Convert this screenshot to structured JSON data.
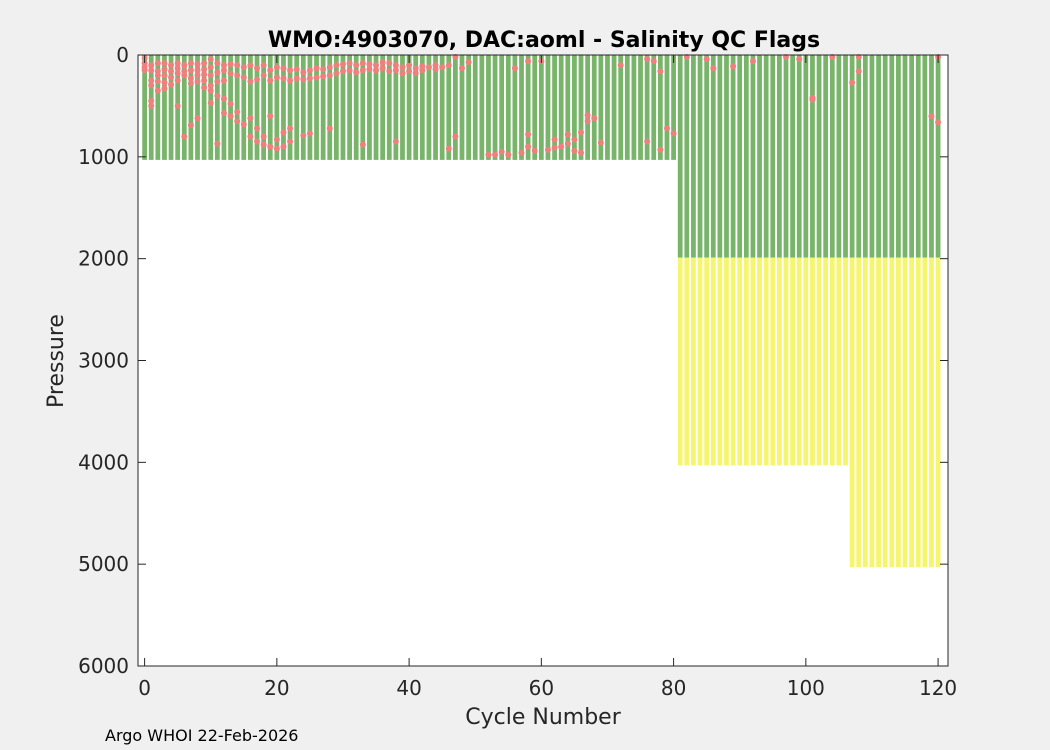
{
  "chart_data": {
    "type": "scatter",
    "title": "WMO:4903070, DAC:aoml -  Salinity QC Flags",
    "xlabel": "Cycle Number",
    "ylabel": "Pressure",
    "xlim": [
      -1,
      121.5
    ],
    "ylim": [
      0,
      6000
    ],
    "y_reversed": true,
    "grid": false,
    "xticks": [
      0,
      20,
      40,
      60,
      80,
      100,
      120
    ],
    "yticks": [
      0,
      1000,
      2000,
      3000,
      4000,
      5000,
      6000
    ],
    "xtick_labels": [
      "0",
      "20",
      "40",
      "60",
      "80",
      "100",
      "120"
    ],
    "ytick_labels": [
      "0",
      "1000",
      "2000",
      "3000",
      "4000",
      "5000",
      "6000"
    ],
    "colors": {
      "good": "#78b469",
      "bad": "#f08080",
      "probably_good": "#f5f56e"
    },
    "series": [
      {
        "flag": "good",
        "color": "#78b469",
        "segments": [
          {
            "cycles": [
              0,
              80
            ],
            "p_top": 0,
            "p_bottom": 1030
          },
          {
            "cycles": [
              81,
              120
            ],
            "p_top": 0,
            "p_bottom": 1990
          }
        ]
      },
      {
        "flag": "probably_good",
        "color": "#f5f56e",
        "segments": [
          {
            "cycles": [
              81,
              106
            ],
            "p_top": 1990,
            "p_bottom": 4030
          },
          {
            "cycles": [
              107,
              120
            ],
            "p_top": 1990,
            "p_bottom": 5030
          }
        ]
      },
      {
        "flag": "bad",
        "color": "#f08080",
        "points": [
          [
            0,
            30
          ],
          [
            0,
            80
          ],
          [
            0,
            120
          ],
          [
            0,
            150
          ],
          [
            1,
            100
          ],
          [
            1,
            150
          ],
          [
            1,
            250
          ],
          [
            1,
            300
          ],
          [
            1,
            450
          ],
          [
            1,
            500
          ],
          [
            2,
            80
          ],
          [
            2,
            160
          ],
          [
            2,
            200
          ],
          [
            2,
            260
          ],
          [
            2,
            350
          ],
          [
            3,
            80
          ],
          [
            3,
            140
          ],
          [
            3,
            200
          ],
          [
            3,
            270
          ],
          [
            3,
            330
          ],
          [
            4,
            100
          ],
          [
            4,
            160
          ],
          [
            4,
            220
          ],
          [
            4,
            290
          ],
          [
            5,
            80
          ],
          [
            5,
            130
          ],
          [
            5,
            180
          ],
          [
            5,
            250
          ],
          [
            5,
            500
          ],
          [
            6,
            100
          ],
          [
            6,
            160
          ],
          [
            6,
            200
          ],
          [
            6,
            800
          ],
          [
            7,
            80
          ],
          [
            7,
            150
          ],
          [
            7,
            230
          ],
          [
            7,
            280
          ],
          [
            7,
            690
          ],
          [
            8,
            90
          ],
          [
            8,
            150
          ],
          [
            8,
            200
          ],
          [
            8,
            260
          ],
          [
            8,
            620
          ],
          [
            9,
            80
          ],
          [
            9,
            140
          ],
          [
            9,
            190
          ],
          [
            9,
            250
          ],
          [
            9,
            320
          ],
          [
            10,
            40
          ],
          [
            10,
            120
          ],
          [
            10,
            200
          ],
          [
            10,
            300
          ],
          [
            10,
            350
          ],
          [
            10,
            470
          ],
          [
            11,
            80
          ],
          [
            11,
            170
          ],
          [
            11,
            260
          ],
          [
            11,
            400
          ],
          [
            11,
            870
          ],
          [
            12,
            100
          ],
          [
            12,
            150
          ],
          [
            12,
            250
          ],
          [
            12,
            430
          ],
          [
            12,
            570
          ],
          [
            13,
            90
          ],
          [
            13,
            180
          ],
          [
            13,
            480
          ],
          [
            13,
            600
          ],
          [
            14,
            100
          ],
          [
            14,
            200
          ],
          [
            14,
            560
          ],
          [
            14,
            650
          ],
          [
            15,
            120
          ],
          [
            15,
            220
          ],
          [
            15,
            680
          ],
          [
            16,
            100
          ],
          [
            16,
            260
          ],
          [
            16,
            620
          ],
          [
            16,
            800
          ],
          [
            17,
            130
          ],
          [
            17,
            240
          ],
          [
            17,
            720
          ],
          [
            17,
            850
          ],
          [
            18,
            100
          ],
          [
            18,
            200
          ],
          [
            18,
            800
          ],
          [
            18,
            880
          ],
          [
            19,
            150
          ],
          [
            19,
            250
          ],
          [
            19,
            600
          ],
          [
            19,
            900
          ],
          [
            20,
            120
          ],
          [
            20,
            220
          ],
          [
            20,
            830
          ],
          [
            20,
            920
          ],
          [
            21,
            130
          ],
          [
            21,
            230
          ],
          [
            21,
            760
          ],
          [
            21,
            900
          ],
          [
            22,
            150
          ],
          [
            22,
            250
          ],
          [
            22,
            720
          ],
          [
            22,
            850
          ],
          [
            23,
            140
          ],
          [
            23,
            230
          ],
          [
            24,
            170
          ],
          [
            24,
            240
          ],
          [
            24,
            790
          ],
          [
            25,
            150
          ],
          [
            25,
            230
          ],
          [
            25,
            770
          ],
          [
            26,
            130
          ],
          [
            26,
            220
          ],
          [
            27,
            140
          ],
          [
            27,
            210
          ],
          [
            28,
            120
          ],
          [
            28,
            200
          ],
          [
            28,
            720
          ],
          [
            29,
            100
          ],
          [
            29,
            180
          ],
          [
            30,
            90
          ],
          [
            30,
            160
          ],
          [
            31,
            80
          ],
          [
            31,
            150
          ],
          [
            32,
            100
          ],
          [
            32,
            170
          ],
          [
            33,
            80
          ],
          [
            33,
            150
          ],
          [
            33,
            880
          ],
          [
            34,
            90
          ],
          [
            34,
            140
          ],
          [
            35,
            100
          ],
          [
            35,
            150
          ],
          [
            36,
            70
          ],
          [
            36,
            130
          ],
          [
            37,
            80
          ],
          [
            37,
            160
          ],
          [
            38,
            100
          ],
          [
            38,
            150
          ],
          [
            38,
            850
          ],
          [
            39,
            120
          ],
          [
            39,
            180
          ],
          [
            40,
            100
          ],
          [
            40,
            160
          ],
          [
            41,
            130
          ],
          [
            41,
            180
          ],
          [
            42,
            110
          ],
          [
            42,
            150
          ],
          [
            43,
            120
          ],
          [
            44,
            100
          ],
          [
            44,
            140
          ],
          [
            45,
            120
          ],
          [
            46,
            100
          ],
          [
            46,
            920
          ],
          [
            47,
            20
          ],
          [
            47,
            800
          ],
          [
            48,
            130
          ],
          [
            49,
            70
          ],
          [
            52,
            980
          ],
          [
            53,
            980
          ],
          [
            54,
            950
          ],
          [
            55,
            980
          ],
          [
            56,
            130
          ],
          [
            57,
            960
          ],
          [
            58,
            60
          ],
          [
            58,
            780
          ],
          [
            58,
            900
          ],
          [
            59,
            940
          ],
          [
            60,
            60
          ],
          [
            61,
            930
          ],
          [
            62,
            910
          ],
          [
            62,
            830
          ],
          [
            63,
            900
          ],
          [
            64,
            780
          ],
          [
            64,
            870
          ],
          [
            65,
            830
          ],
          [
            65,
            940
          ],
          [
            66,
            760
          ],
          [
            66,
            960
          ],
          [
            67,
            590
          ],
          [
            67,
            650
          ],
          [
            68,
            620
          ],
          [
            69,
            860
          ],
          [
            72,
            100
          ],
          [
            76,
            40
          ],
          [
            76,
            850
          ],
          [
            77,
            60
          ],
          [
            78,
            160
          ],
          [
            78,
            930
          ],
          [
            79,
            720
          ],
          [
            80,
            770
          ],
          [
            82,
            20
          ],
          [
            85,
            40
          ],
          [
            86,
            130
          ],
          [
            89,
            110
          ],
          [
            92,
            60
          ],
          [
            97,
            20
          ],
          [
            99,
            40
          ],
          [
            101,
            420
          ],
          [
            101,
            440
          ],
          [
            104,
            20
          ],
          [
            107,
            270
          ],
          [
            108,
            20
          ],
          [
            108,
            160
          ],
          [
            119,
            600
          ],
          [
            120,
            20
          ],
          [
            120,
            660
          ]
        ]
      }
    ]
  },
  "footer": "Argo WHOI 22-Feb-2026"
}
